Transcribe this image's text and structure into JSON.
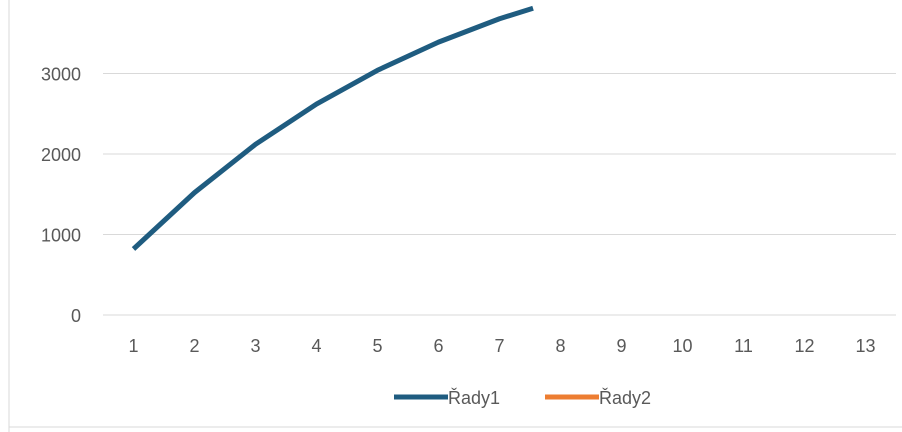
{
  "chart_data": {
    "type": "line",
    "title": "",
    "xlabel": "",
    "ylabel": "",
    "categories": [
      "1",
      "2",
      "3",
      "4",
      "5",
      "6",
      "7",
      "8",
      "9",
      "10",
      "11",
      "12",
      "13"
    ],
    "y_ticks": [
      "0",
      "1000",
      "2000",
      "3000"
    ],
    "ylim": [
      0,
      3800
    ],
    "grid": true,
    "legend_position": "bottom",
    "series": [
      {
        "name": "Řady1",
        "color": "#1F5C80",
        "x": [
          1,
          2,
          3,
          4,
          5,
          6,
          7,
          7.55
        ],
        "values": [
          820,
          1520,
          2120,
          2620,
          3040,
          3390,
          3680,
          3810
        ]
      },
      {
        "name": "Řady2",
        "color": "#ED7D31",
        "x": [],
        "values": []
      }
    ]
  }
}
